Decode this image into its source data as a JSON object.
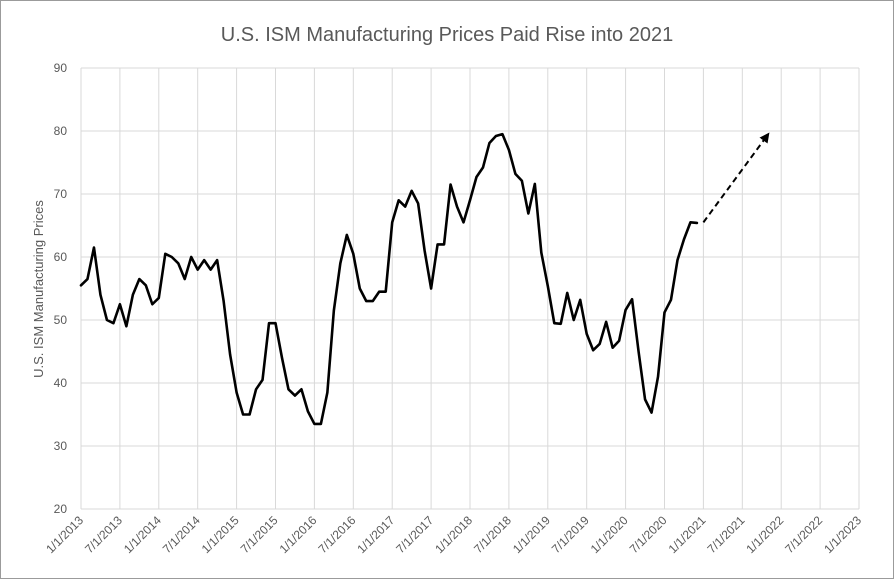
{
  "chart_data": {
    "type": "line",
    "title": "U.S. ISM Manufacturing Prices Paid Rise into 2021",
    "xlabel": "",
    "ylabel": "U.S. ISM Manufacturing Prices",
    "ylim": [
      20,
      90
    ],
    "yticks": [
      "20",
      "30",
      "40",
      "50",
      "60",
      "70",
      "80",
      "90"
    ],
    "xlim": [
      "2013-01-01",
      "2023-01-01"
    ],
    "xticks": [
      "1/1/2013",
      "7/1/2013",
      "1/1/2014",
      "7/1/2014",
      "1/1/2015",
      "7/1/2015",
      "1/1/2016",
      "7/1/2016",
      "1/1/2017",
      "7/1/2017",
      "1/1/2018",
      "7/1/2018",
      "1/1/2019",
      "7/1/2019",
      "1/1/2020",
      "7/1/2020",
      "1/1/2021",
      "7/1/2021",
      "1/1/2022",
      "7/1/2022",
      "1/1/2023"
    ],
    "grid": true,
    "legend": "none",
    "series": [
      {
        "style": "solid",
        "color": "#000000",
        "x": [
          "2013-01",
          "2013-02",
          "2013-03",
          "2013-04",
          "2013-05",
          "2013-06",
          "2013-07",
          "2013-08",
          "2013-09",
          "2013-10",
          "2013-11",
          "2013-12",
          "2014-01",
          "2014-02",
          "2014-03",
          "2014-04",
          "2014-05",
          "2014-06",
          "2014-07",
          "2014-08",
          "2014-09",
          "2014-10",
          "2014-11",
          "2014-12",
          "2015-01",
          "2015-02",
          "2015-03",
          "2015-04",
          "2015-05",
          "2015-06",
          "2015-07",
          "2015-08",
          "2015-09",
          "2015-10",
          "2015-11",
          "2015-12",
          "2016-01",
          "2016-02",
          "2016-03",
          "2016-04",
          "2016-05",
          "2016-06",
          "2016-07",
          "2016-08",
          "2016-09",
          "2016-10",
          "2016-11",
          "2016-12",
          "2017-01",
          "2017-02",
          "2017-03",
          "2017-04",
          "2017-05",
          "2017-06",
          "2017-07",
          "2017-08",
          "2017-09",
          "2017-10",
          "2017-11",
          "2017-12",
          "2018-01",
          "2018-02",
          "2018-03",
          "2018-04",
          "2018-05",
          "2018-06",
          "2018-07",
          "2018-08",
          "2018-09",
          "2018-10",
          "2018-11",
          "2018-12",
          "2019-01",
          "2019-02",
          "2019-03",
          "2019-04",
          "2019-05",
          "2019-06",
          "2019-07",
          "2019-08",
          "2019-09",
          "2019-10",
          "2019-11",
          "2019-12",
          "2020-01",
          "2020-02",
          "2020-03",
          "2020-04",
          "2020-05",
          "2020-06",
          "2020-07",
          "2020-08",
          "2020-09",
          "2020-10",
          "2020-11",
          "2020-12"
        ],
        "y": [
          55.5,
          56.5,
          61.5,
          54.0,
          50.0,
          49.5,
          52.5,
          49.0,
          54.0,
          56.5,
          55.5,
          52.5,
          53.5,
          60.5,
          60.0,
          59.0,
          56.5,
          60.0,
          58.0,
          59.5,
          58.0,
          59.5,
          53.0,
          44.5,
          38.5,
          35.0,
          35.0,
          39.0,
          40.5,
          49.5,
          49.5,
          44.0,
          39.0,
          38.0,
          39.0,
          35.5,
          33.5,
          33.5,
          38.5,
          51.5,
          59.0,
          63.5,
          60.5,
          55.0,
          53.0,
          53.0,
          54.5,
          54.5,
          65.5,
          69.0,
          68.0,
          70.5,
          68.5,
          61.0,
          55.0,
          62.0,
          62.0,
          71.5,
          68.0,
          65.5,
          69.0,
          72.7,
          74.2,
          78.1,
          79.2,
          79.5,
          77.0,
          73.2,
          72.1,
          66.9,
          71.6,
          60.7,
          55.4,
          49.5,
          49.4,
          54.3,
          50.0,
          53.2,
          47.8,
          45.2,
          46.2,
          49.7,
          45.6,
          46.7,
          51.6,
          53.3,
          45.0,
          37.4,
          35.3,
          41.0,
          51.2,
          53.2,
          59.5,
          62.8,
          65.5,
          65.4
        ]
      },
      {
        "style": "dashed-arrow",
        "color": "#000000",
        "x": [
          "2021-01",
          "2021-11"
        ],
        "y": [
          65.5,
          79.5
        ]
      }
    ]
  }
}
